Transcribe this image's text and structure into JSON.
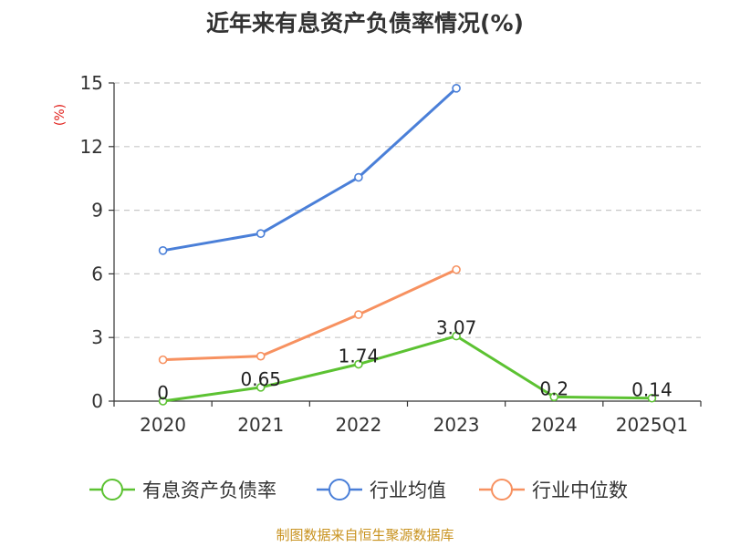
{
  "chart_data": {
    "type": "line",
    "title": "近年来有息资产负债率情况(%)",
    "ylabel": "(%)",
    "xlabel": "",
    "categories": [
      "2020",
      "2021",
      "2022",
      "2023",
      "2024",
      "2025Q1"
    ],
    "ylim": [
      0,
      15
    ],
    "yticks": [
      0,
      3,
      6,
      9,
      12,
      15
    ],
    "grid": true,
    "legend_position": "bottom",
    "series": [
      {
        "name": "有息资产负债率",
        "color": "#5cc232",
        "values": [
          0,
          0.65,
          1.74,
          3.07,
          0.2,
          0.14
        ],
        "data_labels": [
          "0",
          "0.65",
          "1.74",
          "3.07",
          "0.2",
          "0.14"
        ]
      },
      {
        "name": "行业均值",
        "color": "#4a7fd8",
        "values": [
          7.1,
          7.9,
          10.55,
          14.75,
          null,
          null
        ]
      },
      {
        "name": "行业中位数",
        "color": "#f79160",
        "values": [
          1.95,
          2.12,
          4.08,
          6.2,
          null,
          null
        ]
      }
    ]
  },
  "source_note": "制图数据来自恒生聚源数据库"
}
